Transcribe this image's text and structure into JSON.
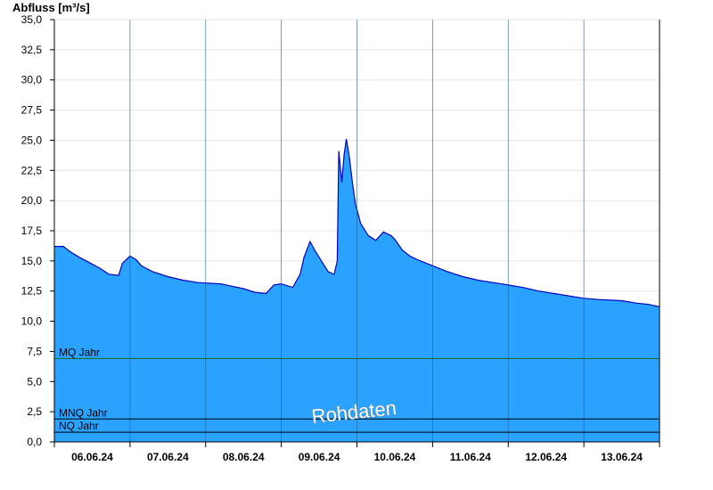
{
  "chart_data": {
    "type": "area",
    "ylabel": "Abfluss [m³/s]",
    "ylim": [
      0,
      35
    ],
    "y_ticks": [
      "0,0",
      "2,5",
      "5,0",
      "7,5",
      "10,0",
      "12,5",
      "15,0",
      "17,5",
      "20,0",
      "22,5",
      "25,0",
      "27,5",
      "30,0",
      "32,5",
      "35,0"
    ],
    "x_ticks": [
      "06.06.24",
      "07.06.24",
      "08.06.24",
      "09.06.24",
      "10.06.24",
      "11.06.24",
      "12.06.24",
      "13.06.24"
    ],
    "xlim_days": [
      0,
      8
    ],
    "grid": true,
    "watermark": "Rohdaten",
    "colors": {
      "fill": "#29a3ff",
      "line": "#0000c0",
      "grid": "#e6e6e6",
      "reference": "#000000",
      "mq_line": "#226622"
    },
    "reference_lines": [
      {
        "label": "MQ Jahr",
        "value": 6.9
      },
      {
        "label": "MNQ Jahr",
        "value": 1.9
      },
      {
        "label": "NQ Jahr",
        "value": 0.8
      }
    ],
    "series": [
      {
        "x_days": [
          0,
          0.12,
          0.2,
          0.33,
          0.45,
          0.6,
          0.72,
          0.85,
          0.9,
          1.0,
          1.08,
          1.15,
          1.3,
          1.5,
          1.7,
          1.9,
          2.2,
          2.5,
          2.65,
          2.8,
          2.9,
          3.0,
          3.15,
          3.25,
          3.3,
          3.38,
          3.45,
          3.55,
          3.62,
          3.7,
          3.74,
          3.76,
          3.8,
          3.83,
          3.86,
          3.9,
          3.94,
          3.98,
          4.05,
          4.15,
          4.25,
          4.35,
          4.45,
          4.5,
          4.6,
          4.7,
          4.8,
          5.0,
          5.2,
          5.4,
          5.6,
          5.8,
          6.0,
          6.2,
          6.4,
          6.6,
          6.8,
          7.0,
          7.2,
          7.5,
          7.7,
          7.85,
          8.0
        ],
        "values": [
          16.2,
          16.2,
          15.8,
          15.3,
          14.9,
          14.4,
          13.9,
          13.8,
          14.8,
          15.4,
          15.1,
          14.6,
          14.1,
          13.7,
          13.4,
          13.2,
          13.1,
          12.7,
          12.4,
          12.3,
          13.0,
          13.1,
          12.8,
          13.9,
          15.3,
          16.6,
          15.8,
          14.8,
          14.1,
          13.9,
          15.0,
          24.1,
          21.5,
          23.8,
          25.1,
          23.6,
          21.5,
          19.7,
          18.1,
          17.1,
          16.7,
          17.4,
          17.1,
          16.8,
          15.9,
          15.4,
          15.1,
          14.6,
          14.1,
          13.7,
          13.4,
          13.2,
          13.0,
          12.8,
          12.5,
          12.3,
          12.1,
          11.9,
          11.8,
          11.7,
          11.5,
          11.4,
          11.2
        ]
      }
    ]
  }
}
